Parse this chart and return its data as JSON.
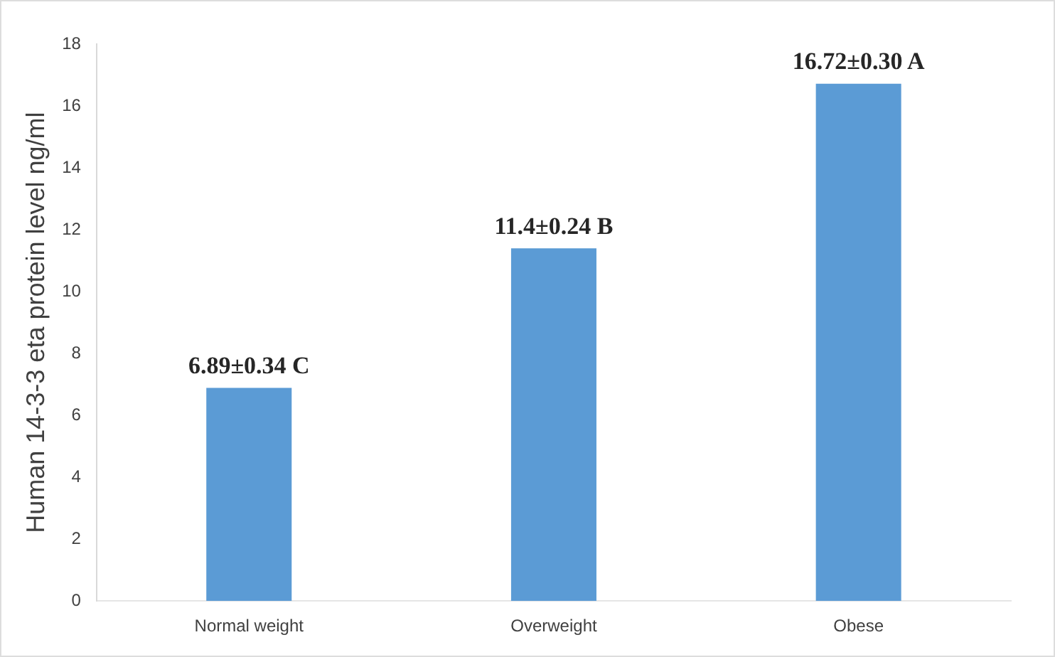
{
  "chart_data": {
    "type": "bar",
    "ylabel": "Human 14-3-3 eta protein level ng/ml",
    "categories": [
      "Normal weight",
      "Overweight",
      "Obese"
    ],
    "values": [
      6.89,
      11.4,
      16.72
    ],
    "color": "#5b9bd5",
    "value_labels": [
      "6.89±0.34 C",
      "11.4±0.24 B",
      "16.72±0.30 A"
    ],
    "ylim": [
      0,
      18
    ],
    "yticks": [
      0,
      2,
      4,
      6,
      8,
      10,
      12,
      14,
      16,
      18
    ],
    "grid": false,
    "legend": false
  }
}
